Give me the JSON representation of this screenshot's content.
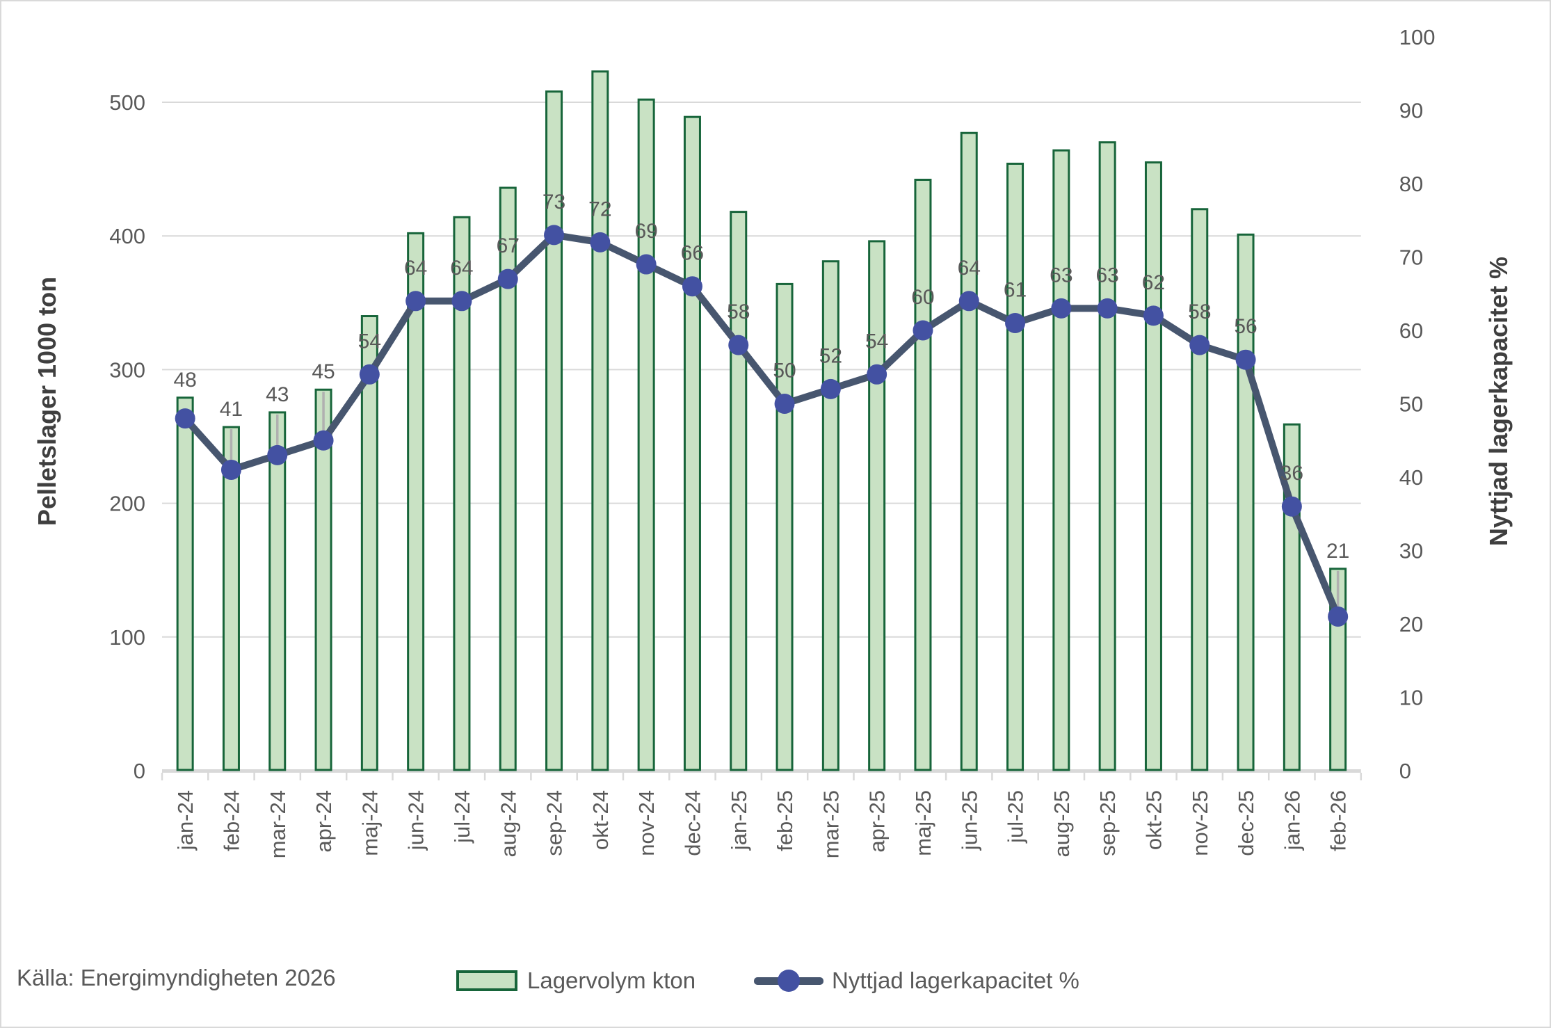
{
  "source_note": "Källa: Energimyndigheten 2026",
  "legend": {
    "bar_label": "Lagervolym kton",
    "line_label": "Nyttjad lagerkapacitet %"
  },
  "colors": {
    "bar_fill": "#c9e2c4",
    "bar_border": "#17653a",
    "line": "#47566f",
    "marker": "#4351a2",
    "gridline": "#d9d9d9",
    "axis_band": "#d9d9d9",
    "tick_text": "#595959",
    "data_label_text": "#595959",
    "axis_title_text": "#3f3f3f",
    "whisker": "#b0b0b0"
  },
  "chart_data": {
    "type": "bar+line combo",
    "title": "",
    "ylabel_left": "Pelletslager 1000 ton",
    "ylabel_right": "Nyttjad lagerkapacitet %",
    "categories": [
      "jan-24",
      "feb-24",
      "mar-24",
      "apr-24",
      "maj-24",
      "jun-24",
      "jul-24",
      "aug-24",
      "sep-24",
      "okt-24",
      "nov-24",
      "dec-24",
      "jan-25",
      "feb-25",
      "mar-25",
      "apr-25",
      "maj-25",
      "jun-25",
      "jul-25",
      "aug-25",
      "sep-25",
      "okt-25",
      "nov-25",
      "dec-25",
      "jan-26",
      "feb-26"
    ],
    "series": [
      {
        "name": "Lagervolym kton",
        "type": "bar",
        "axis": "left",
        "values": [
          279,
          257,
          268,
          285,
          340,
          402,
          414,
          436,
          508,
          523,
          502,
          489,
          418,
          364,
          381,
          396,
          442,
          477,
          454,
          464,
          470,
          455,
          420,
          401,
          259,
          151
        ]
      },
      {
        "name": "Nyttjad lagerkapacitet %",
        "type": "line",
        "axis": "right",
        "values": [
          48,
          41,
          43,
          45,
          54,
          64,
          64,
          67,
          73,
          72,
          69,
          66,
          58,
          50,
          52,
          54,
          60,
          64,
          61,
          63,
          63,
          62,
          58,
          56,
          36,
          21
        ],
        "data_labels": true
      }
    ],
    "ylim_left": [
      0,
      500
    ],
    "left_tick_step": 100,
    "ylim_right": [
      0,
      100
    ],
    "right_tick_step": 10,
    "grid": "horizontal",
    "legend_position": "bottom",
    "x_label_rotation": -90,
    "whisker_months": [
      "feb-24",
      "mar-24",
      "apr-24",
      "feb-26"
    ]
  }
}
